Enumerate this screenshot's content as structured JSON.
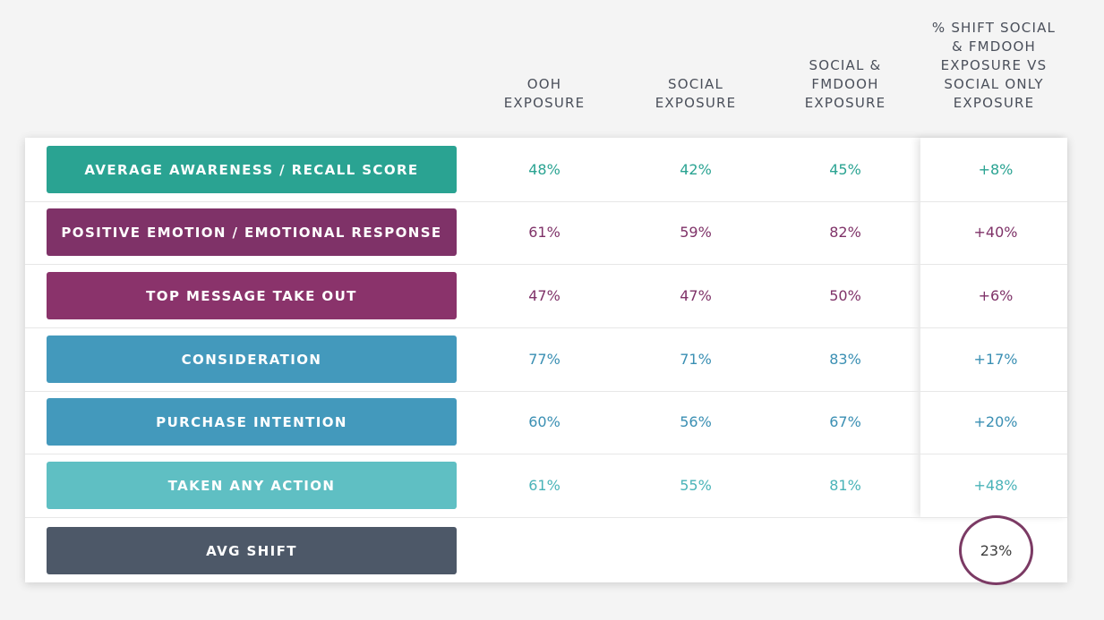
{
  "chart_data": {
    "type": "table",
    "columns": [
      "OOH\nEXPOSURE",
      "SOCIAL\nEXPOSURE",
      "SOCIAL &\nFMDOOH\nEXPOSURE",
      "% SHIFT SOCIAL\n& FMDOOH\nEXPOSURE VS\nSOCIAL ONLY\nEXPOSURE"
    ],
    "rows": [
      {
        "label": "AVERAGE AWARENESS / RECALL SCORE",
        "color": "#2aa392",
        "text_color": "#2aa392",
        "values": [
          "48%",
          "42%",
          "45%",
          "+8%"
        ]
      },
      {
        "label": "POSITIVE EMOTION / EMOTIONAL RESPONSE",
        "color": "#7f3268",
        "text_color": "#7f3268",
        "values": [
          "61%",
          "59%",
          "82%",
          "+40%"
        ]
      },
      {
        "label": "TOP MESSAGE  TAKE OUT",
        "color": "#8a336b",
        "text_color": "#7f3268",
        "values": [
          "47%",
          "47%",
          "50%",
          "+6%"
        ]
      },
      {
        "label": "CONSIDERATION",
        "color": "#4399bc",
        "text_color": "#3a8fb3",
        "values": [
          "77%",
          "71%",
          "83%",
          "+17%"
        ]
      },
      {
        "label": "PURCHASE INTENTION",
        "color": "#4399bc",
        "text_color": "#3a8fb3",
        "values": [
          "60%",
          "56%",
          "67%",
          "+20%"
        ]
      },
      {
        "label": "TAKEN ANY ACTION",
        "color": "#5fbfc3",
        "text_color": "#49b3b8",
        "values": [
          "61%",
          "55%",
          "81%",
          "+48%"
        ]
      }
    ],
    "summary": {
      "label": "AVG SHIFT",
      "color": "#4d5868",
      "value": "23%",
      "circle_color": "#7b3a64"
    }
  }
}
